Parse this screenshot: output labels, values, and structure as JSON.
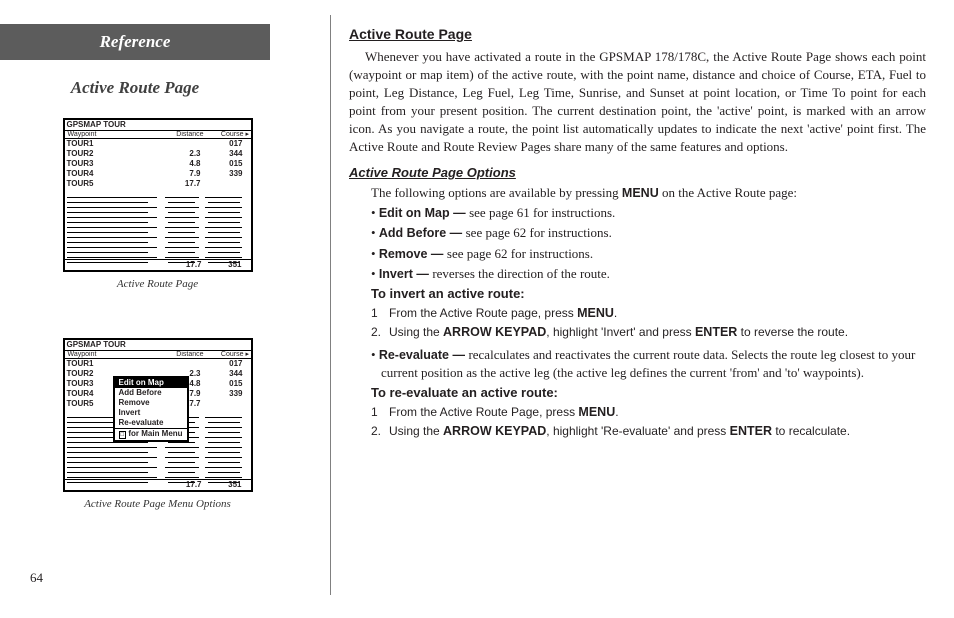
{
  "left": {
    "reference": "Reference",
    "subtitle": "Active Route Page",
    "shot_title": "GPSMAP TOUR",
    "shot_head_wp": "Waypoint",
    "shot_head_dist": "Distance",
    "shot_head_course": "Course",
    "rows": [
      {
        "wp": "TOUR1",
        "d": "",
        "c": "017"
      },
      {
        "wp": "TOUR2",
        "d": "2.3",
        "c": "344"
      },
      {
        "wp": "TOUR3",
        "d": "4.8",
        "c": "015"
      },
      {
        "wp": "TOUR4",
        "d": "7.9",
        "c": "339"
      },
      {
        "wp": "TOUR5",
        "d": "17.7",
        "c": ""
      }
    ],
    "foot_dist": "17.7",
    "foot_course": "351",
    "caption1": "Active Route Page",
    "caption2": "Active Route Page Menu Options",
    "menu": {
      "items": [
        "Edit on Map",
        "Add Before",
        "Remove",
        "Invert",
        "Re-evaluate"
      ],
      "footer": "for Main Menu"
    },
    "pagenum": "64"
  },
  "right": {
    "h1": "Active Route Page",
    "p1a": "Whenever you have activated a route in the GPSMAP 178/178C, the Active Route Page shows each point (waypoint or map item) of the active route, with the point name, distance and choice of Course, ETA, Fuel to point, Leg Distance, Leg Fuel, Leg Time, Sunrise, and Sunset at point location, or Time To point for each point from your present position. The current destination point, the 'active' point, is marked with an arrow icon. As you navigate a route, the point list automatically updates to indicate the next 'active' point first. The Active Route and Route Review Pages share many of the same features and options.",
    "h2": "Active Route Page Options",
    "intro": "The following options are available by pressing ",
    "intro_b": "MENU",
    "intro2": " on the Active Route page:",
    "opts": [
      {
        "b": "Edit on Map — ",
        "t": "see page 61 for instructions."
      },
      {
        "b": "Add Before — ",
        "t": "see page 62 for instructions."
      },
      {
        "b": "Remove — ",
        "t": "see page 62 for instructions."
      },
      {
        "b": "Invert — ",
        "t": "reverses the direction of the route."
      }
    ],
    "to_invert": "To invert an active route:",
    "inv_steps": [
      {
        "n": "1",
        "pre": "From the Active Route page, press ",
        "b": "MENU",
        "post": "."
      },
      {
        "n": "2.",
        "pre": "Using the ",
        "b1": "ARROW KEYPAD",
        "mid": ", highlight 'Invert' and press ",
        "b2": "ENTER",
        "post": " to reverse the route."
      }
    ],
    "reeval_b": "Re-evaluate — ",
    "reeval_t": "recalculates and reactivates the current route data. Selects the route leg closest to your current position as the active leg (the active leg defines the current 'from' and 'to' waypoints).",
    "to_reeval": "To re-evaluate an active route:",
    "re_steps": [
      {
        "n": "1",
        "pre": "From the Active Route Page, press ",
        "b": "MENU",
        "post": "."
      },
      {
        "n": "2.",
        "pre": "Using the ",
        "b1": "ARROW KEYPAD",
        "mid": ", highlight 'Re-evaluate' and press ",
        "b2": "ENTER",
        "post": " to recalculate."
      }
    ]
  }
}
